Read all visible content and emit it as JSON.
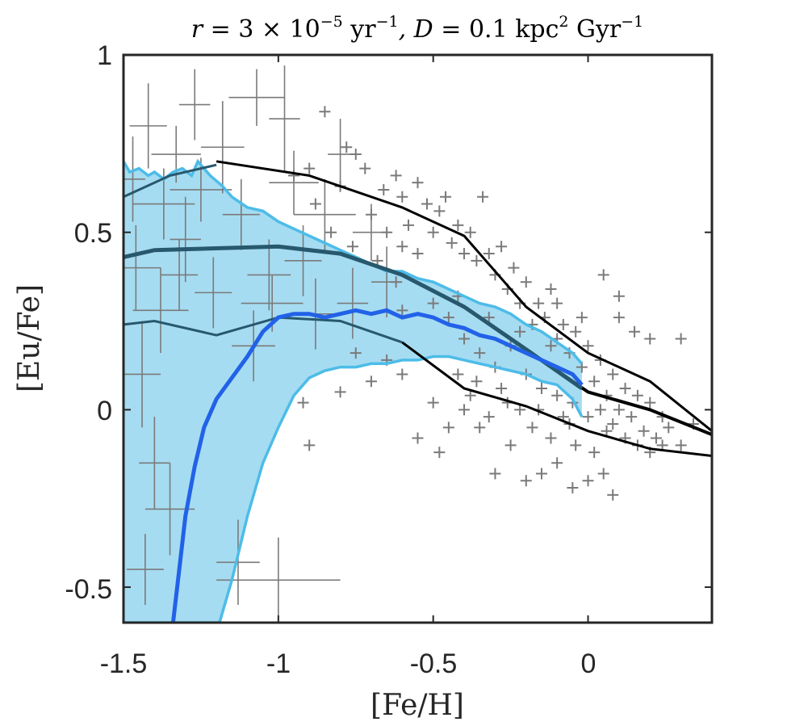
{
  "chart_data": {
    "type": "line",
    "title": "r = 3 × 10⁻⁵ yr⁻¹, D = 0.1 kpc² Gyr⁻¹",
    "title_parts": {
      "r_label": "r",
      "eq1": " = 3 × 10",
      "exp1": "−5",
      "unit1": " yr",
      "exp2": "−1",
      "d_label": ", D",
      "eq2": " = 0.1 kpc",
      "exp3": "2",
      "unit2": " Gyr",
      "exp4": "−1"
    },
    "xlabel": "[Fe/H]",
    "ylabel": "[Eu/Fe]",
    "xlim": [
      -1.5,
      0.4
    ],
    "ylim": [
      -0.6,
      1.0
    ],
    "grid": false,
    "x_ticks": [
      -1.5,
      -1,
      -0.5,
      0
    ],
    "x_tick_labels": [
      "-1.5",
      "-1",
      "-0.5",
      "0"
    ],
    "y_ticks": [
      -0.5,
      0,
      0.5,
      1
    ],
    "y_tick_labels": [
      "-0.5",
      "0",
      "0.5",
      "1"
    ],
    "colors": {
      "band_fill": "#a6dcf1",
      "band_edge": "#4dbce8",
      "median": "#2262e8",
      "teal": "#27586d",
      "obs_lines": "#000000",
      "points": "#7a7a7a"
    },
    "band": {
      "name": "model 68% range",
      "upper": [
        [
          -1.5,
          0.7
        ],
        [
          -1.48,
          0.67
        ],
        [
          -1.45,
          0.68
        ],
        [
          -1.42,
          0.66
        ],
        [
          -1.4,
          0.67
        ],
        [
          -1.37,
          0.65
        ],
        [
          -1.34,
          0.67
        ],
        [
          -1.31,
          0.68
        ],
        [
          -1.28,
          0.66
        ],
        [
          -1.26,
          0.7
        ],
        [
          -1.22,
          0.66
        ],
        [
          -1.18,
          0.63
        ],
        [
          -1.15,
          0.6
        ],
        [
          -1.1,
          0.57
        ],
        [
          -1.05,
          0.56
        ],
        [
          -1.0,
          0.53
        ],
        [
          -0.95,
          0.51
        ],
        [
          -0.9,
          0.49
        ],
        [
          -0.85,
          0.47
        ],
        [
          -0.8,
          0.45
        ],
        [
          -0.75,
          0.43
        ],
        [
          -0.7,
          0.41
        ],
        [
          -0.65,
          0.39
        ],
        [
          -0.6,
          0.39
        ],
        [
          -0.55,
          0.37
        ],
        [
          -0.5,
          0.36
        ],
        [
          -0.45,
          0.34
        ],
        [
          -0.4,
          0.32
        ],
        [
          -0.35,
          0.3
        ],
        [
          -0.3,
          0.29
        ],
        [
          -0.25,
          0.27
        ],
        [
          -0.2,
          0.24
        ],
        [
          -0.15,
          0.22
        ],
        [
          -0.1,
          0.19
        ],
        [
          -0.05,
          0.16
        ],
        [
          -0.02,
          0.13
        ]
      ],
      "lower": [
        [
          -1.5,
          -0.6
        ],
        [
          -1.19,
          -0.6
        ],
        [
          -1.15,
          -0.48
        ],
        [
          -1.1,
          -0.3
        ],
        [
          -1.05,
          -0.15
        ],
        [
          -1.0,
          -0.05
        ],
        [
          -0.95,
          0.04
        ],
        [
          -0.9,
          0.09
        ],
        [
          -0.85,
          0.11
        ],
        [
          -0.8,
          0.12
        ],
        [
          -0.75,
          0.12
        ],
        [
          -0.7,
          0.13
        ],
        [
          -0.65,
          0.13
        ],
        [
          -0.6,
          0.14
        ],
        [
          -0.55,
          0.14
        ],
        [
          -0.5,
          0.15
        ],
        [
          -0.45,
          0.15
        ],
        [
          -0.4,
          0.14
        ],
        [
          -0.35,
          0.13
        ],
        [
          -0.3,
          0.12
        ],
        [
          -0.25,
          0.11
        ],
        [
          -0.2,
          0.1
        ],
        [
          -0.15,
          0.08
        ],
        [
          -0.1,
          0.07
        ],
        [
          -0.05,
          0.03
        ],
        [
          -0.02,
          -0.02
        ]
      ]
    },
    "series": [
      {
        "name": "model median",
        "points": [
          [
            -1.34,
            -0.6
          ],
          [
            -1.32,
            -0.45
          ],
          [
            -1.3,
            -0.3
          ],
          [
            -1.27,
            -0.16
          ],
          [
            -1.24,
            -0.05
          ],
          [
            -1.2,
            0.03
          ],
          [
            -1.15,
            0.09
          ],
          [
            -1.1,
            0.15
          ],
          [
            -1.05,
            0.22
          ],
          [
            -1.0,
            0.26
          ],
          [
            -0.95,
            0.27
          ],
          [
            -0.9,
            0.27
          ],
          [
            -0.85,
            0.26
          ],
          [
            -0.8,
            0.27
          ],
          [
            -0.75,
            0.28
          ],
          [
            -0.7,
            0.27
          ],
          [
            -0.65,
            0.28
          ],
          [
            -0.6,
            0.26
          ],
          [
            -0.55,
            0.27
          ],
          [
            -0.5,
            0.26
          ],
          [
            -0.45,
            0.24
          ],
          [
            -0.4,
            0.23
          ],
          [
            -0.35,
            0.21
          ],
          [
            -0.3,
            0.2
          ],
          [
            -0.25,
            0.18
          ],
          [
            -0.2,
            0.16
          ],
          [
            -0.15,
            0.14
          ],
          [
            -0.1,
            0.12
          ],
          [
            -0.05,
            0.1
          ],
          [
            -0.02,
            0.07
          ]
        ]
      },
      {
        "name": "teal upper",
        "points": [
          [
            -1.5,
            0.6
          ],
          [
            -1.35,
            0.66
          ],
          [
            -1.2,
            0.69
          ]
        ]
      },
      {
        "name": "teal middle",
        "points": [
          [
            -1.5,
            0.43
          ],
          [
            -1.4,
            0.45
          ],
          [
            -1.0,
            0.46
          ],
          [
            -0.8,
            0.44
          ],
          [
            -0.6,
            0.38
          ],
          [
            -0.4,
            0.29
          ],
          [
            -0.2,
            0.17
          ],
          [
            -0.02,
            0.06
          ]
        ]
      },
      {
        "name": "teal lower",
        "points": [
          [
            -1.5,
            0.24
          ],
          [
            -1.4,
            0.25
          ],
          [
            -1.2,
            0.21
          ],
          [
            -1.0,
            0.26
          ],
          [
            -0.8,
            0.25
          ],
          [
            -0.6,
            0.19
          ]
        ]
      },
      {
        "name": "observed upper",
        "points": [
          [
            -1.2,
            0.7
          ],
          [
            -0.9,
            0.66
          ],
          [
            -0.6,
            0.57
          ],
          [
            -0.4,
            0.49
          ],
          [
            -0.2,
            0.29
          ],
          [
            0.0,
            0.16
          ],
          [
            0.2,
            0.08
          ],
          [
            0.4,
            -0.06
          ]
        ]
      },
      {
        "name": "observed middle",
        "points": [
          [
            -0.8,
            0.44
          ],
          [
            -0.6,
            0.38
          ],
          [
            -0.4,
            0.29
          ],
          [
            -0.2,
            0.17
          ],
          [
            0.0,
            0.05
          ],
          [
            0.2,
            0.0
          ],
          [
            0.4,
            -0.07
          ]
        ]
      },
      {
        "name": "observed lower",
        "points": [
          [
            -0.6,
            0.19
          ],
          [
            -0.4,
            0.06
          ],
          [
            -0.2,
            0.01
          ],
          [
            0.0,
            -0.06
          ],
          [
            0.2,
            -0.11
          ],
          [
            0.4,
            -0.13
          ]
        ]
      }
    ],
    "errorbar_points": [
      {
        "x": -1.42,
        "y": 0.8,
        "xerr": 0.06,
        "yerr": 0.12
      },
      {
        "x": -1.37,
        "y": 0.58,
        "xerr": 0.1,
        "yerr": 0.1
      },
      {
        "x": -1.33,
        "y": 0.72,
        "xerr": 0.08,
        "yerr": 0.08
      },
      {
        "x": -1.3,
        "y": 0.48,
        "xerr": 0.05,
        "yerr": 0.12
      },
      {
        "x": -1.27,
        "y": 0.86,
        "xerr": 0.05,
        "yerr": 0.1
      },
      {
        "x": -1.25,
        "y": 0.62,
        "xerr": 0.1,
        "yerr": 0.09
      },
      {
        "x": -1.21,
        "y": 0.33,
        "xerr": 0.06,
        "yerr": 0.1
      },
      {
        "x": -1.18,
        "y": 0.74,
        "xerr": 0.07,
        "yerr": 0.13
      },
      {
        "x": -1.12,
        "y": 0.55,
        "xerr": 0.06,
        "yerr": 0.1
      },
      {
        "x": -1.07,
        "y": 0.88,
        "xerr": 0.09,
        "yerr": 0.08
      },
      {
        "x": -1.03,
        "y": 0.38,
        "xerr": 0.07,
        "yerr": 0.1
      },
      {
        "x": -0.98,
        "y": 0.82,
        "xerr": 0.05,
        "yerr": 0.15
      },
      {
        "x": -0.95,
        "y": 0.64,
        "xerr": 0.08,
        "yerr": 0.09
      },
      {
        "x": -0.88,
        "y": 0.27,
        "xerr": 0.06,
        "yerr": 0.1
      },
      {
        "x": -0.85,
        "y": 0.55,
        "xerr": 0.1,
        "yerr": 0.1
      },
      {
        "x": -0.8,
        "y": 0.72,
        "xerr": 0.04,
        "yerr": 0.1
      },
      {
        "x": -0.76,
        "y": 0.3,
        "xerr": 0.05,
        "yerr": 0.1
      },
      {
        "x": -1.46,
        "y": 0.4,
        "xerr": 0.08,
        "yerr": 0.12
      },
      {
        "x": -1.44,
        "y": 0.1,
        "xerr": 0.06,
        "yerr": 0.15
      },
      {
        "x": -1.4,
        "y": -0.15,
        "xerr": 0.05,
        "yerr": 0.13
      },
      {
        "x": -1.35,
        "y": -0.28,
        "xerr": 0.08,
        "yerr": 0.13
      },
      {
        "x": -1.43,
        "y": -0.45,
        "xerr": 0.06,
        "yerr": 0.1
      },
      {
        "x": -1.38,
        "y": 0.28,
        "xerr": 0.09,
        "yerr": 0.12
      },
      {
        "x": -1.13,
        "y": -0.43,
        "xerr": 0.07,
        "yerr": 0.12
      },
      {
        "x": -1.08,
        "y": 0.18,
        "xerr": 0.07,
        "yerr": 0.1
      },
      {
        "x": -1.02,
        "y": 0.3,
        "xerr": 0.1,
        "yerr": 0.08
      },
      {
        "x": -1.0,
        "y": -0.48,
        "xerr": 0.2,
        "yerr": 0.12
      },
      {
        "x": -0.92,
        "y": 0.42,
        "xerr": 0.06,
        "yerr": 0.1
      },
      {
        "x": -0.7,
        "y": 0.5,
        "xerr": 0.06,
        "yerr": 0.08
      },
      {
        "x": -0.65,
        "y": 0.36,
        "xerr": 0.05,
        "yerr": 0.1
      },
      {
        "x": -1.47,
        "y": 0.65,
        "xerr": 0.04,
        "yerr": 0.12
      },
      {
        "x": -1.32,
        "y": 0.38,
        "xerr": 0.06,
        "yerr": 0.1
      }
    ],
    "plus_points": [
      [
        -0.85,
        0.84
      ],
      [
        -0.8,
        0.63
      ],
      [
        -0.78,
        0.74
      ],
      [
        -0.75,
        0.72
      ],
      [
        -0.72,
        0.68
      ],
      [
        -0.7,
        0.55
      ],
      [
        -0.66,
        0.62
      ],
      [
        -0.62,
        0.66
      ],
      [
        -0.6,
        0.6
      ],
      [
        -0.58,
        0.52
      ],
      [
        -0.55,
        0.64
      ],
      [
        -0.52,
        0.58
      ],
      [
        -0.5,
        0.5
      ],
      [
        -0.48,
        0.56
      ],
      [
        -0.46,
        0.6
      ],
      [
        -0.44,
        0.47
      ],
      [
        -0.42,
        0.52
      ],
      [
        -0.4,
        0.44
      ],
      [
        -0.38,
        0.5
      ],
      [
        -0.36,
        0.42
      ],
      [
        -0.34,
        0.6
      ],
      [
        -0.32,
        0.44
      ],
      [
        -0.3,
        0.38
      ],
      [
        -0.28,
        0.46
      ],
      [
        -0.26,
        0.34
      ],
      [
        -0.24,
        0.4
      ],
      [
        -0.22,
        0.3
      ],
      [
        -0.2,
        0.36
      ],
      [
        -0.18,
        0.24
      ],
      [
        -0.16,
        0.3
      ],
      [
        -0.14,
        0.26
      ],
      [
        -0.12,
        0.34
      ],
      [
        -0.1,
        0.2
      ],
      [
        -0.08,
        0.24
      ],
      [
        -0.06,
        0.16
      ],
      [
        -0.04,
        0.22
      ],
      [
        -0.02,
        0.12
      ],
      [
        0.0,
        0.18
      ],
      [
        0.02,
        0.08
      ],
      [
        0.04,
        0.14
      ],
      [
        0.06,
        0.04
      ],
      [
        0.08,
        0.1
      ],
      [
        0.1,
        0.0
      ],
      [
        0.12,
        0.06
      ],
      [
        0.14,
        -0.02
      ],
      [
        0.16,
        0.04
      ],
      [
        0.18,
        -0.06
      ],
      [
        0.2,
        0.02
      ],
      [
        0.22,
        -0.08
      ],
      [
        0.24,
        -0.02
      ],
      [
        0.26,
        -0.05
      ],
      [
        0.3,
        -0.1
      ],
      [
        0.34,
        -0.04
      ],
      [
        0.05,
        0.38
      ],
      [
        0.1,
        0.26
      ],
      [
        0.1,
        0.32
      ],
      [
        0.15,
        0.22
      ],
      [
        0.2,
        0.2
      ],
      [
        0.3,
        0.2
      ],
      [
        -0.1,
        0.3
      ],
      [
        -0.2,
        -0.2
      ],
      [
        -0.15,
        -0.18
      ],
      [
        -0.1,
        -0.15
      ],
      [
        -0.05,
        -0.22
      ],
      [
        0.0,
        -0.2
      ],
      [
        0.05,
        -0.18
      ],
      [
        0.08,
        -0.24
      ],
      [
        -0.3,
        -0.18
      ],
      [
        -0.25,
        -0.1
      ],
      [
        -0.35,
        -0.05
      ],
      [
        -0.4,
        0.0
      ],
      [
        -0.45,
        -0.05
      ],
      [
        -0.5,
        0.02
      ],
      [
        -0.55,
        -0.08
      ],
      [
        -0.48,
        -0.12
      ],
      [
        -0.38,
        0.04
      ],
      [
        -0.32,
        -0.02
      ],
      [
        -0.28,
        0.06
      ],
      [
        -0.22,
        0.0
      ],
      [
        -0.18,
        -0.05
      ],
      [
        -0.12,
        -0.08
      ],
      [
        -0.08,
        -0.02
      ],
      [
        -0.04,
        -0.1
      ],
      [
        0.02,
        -0.12
      ],
      [
        0.06,
        -0.06
      ],
      [
        -0.6,
        0.1
      ],
      [
        -0.65,
        0.14
      ],
      [
        -0.7,
        0.08
      ],
      [
        -0.75,
        0.16
      ],
      [
        -0.8,
        0.05
      ],
      [
        -0.9,
        -0.1
      ],
      [
        -0.92,
        0.02
      ],
      [
        -0.6,
        0.28
      ],
      [
        -0.5,
        0.3
      ],
      [
        -0.45,
        0.26
      ],
      [
        -0.4,
        0.2
      ],
      [
        -0.35,
        0.16
      ],
      [
        -0.3,
        0.12
      ],
      [
        -0.25,
        0.18
      ],
      [
        -0.2,
        0.1
      ],
      [
        -0.15,
        0.06
      ],
      [
        -0.1,
        0.04
      ],
      [
        -0.05,
        0.02
      ],
      [
        0.0,
        -0.02
      ],
      [
        0.04,
        0.0
      ],
      [
        0.08,
        -0.04
      ],
      [
        0.12,
        -0.08
      ],
      [
        0.16,
        -0.1
      ],
      [
        0.2,
        -0.12
      ],
      [
        0.24,
        -0.1
      ],
      [
        -0.55,
        0.44
      ],
      [
        -0.6,
        0.46
      ],
      [
        -0.65,
        0.5
      ],
      [
        -0.9,
        0.68
      ],
      [
        -0.95,
        0.66
      ],
      [
        -0.88,
        0.58
      ],
      [
        -0.83,
        0.5
      ],
      [
        -0.76,
        0.46
      ],
      [
        -0.68,
        0.42
      ],
      [
        -0.62,
        0.36
      ],
      [
        -0.42,
        0.1
      ],
      [
        -0.36,
        0.08
      ],
      [
        -0.26,
        0.02
      ],
      [
        -0.16,
        0.0
      ],
      [
        -0.06,
        -0.04
      ],
      [
        -0.02,
        0.26
      ],
      [
        -0.12,
        0.18
      ],
      [
        -0.22,
        0.22
      ],
      [
        -0.32,
        0.26
      ],
      [
        -0.42,
        0.32
      ]
    ]
  }
}
